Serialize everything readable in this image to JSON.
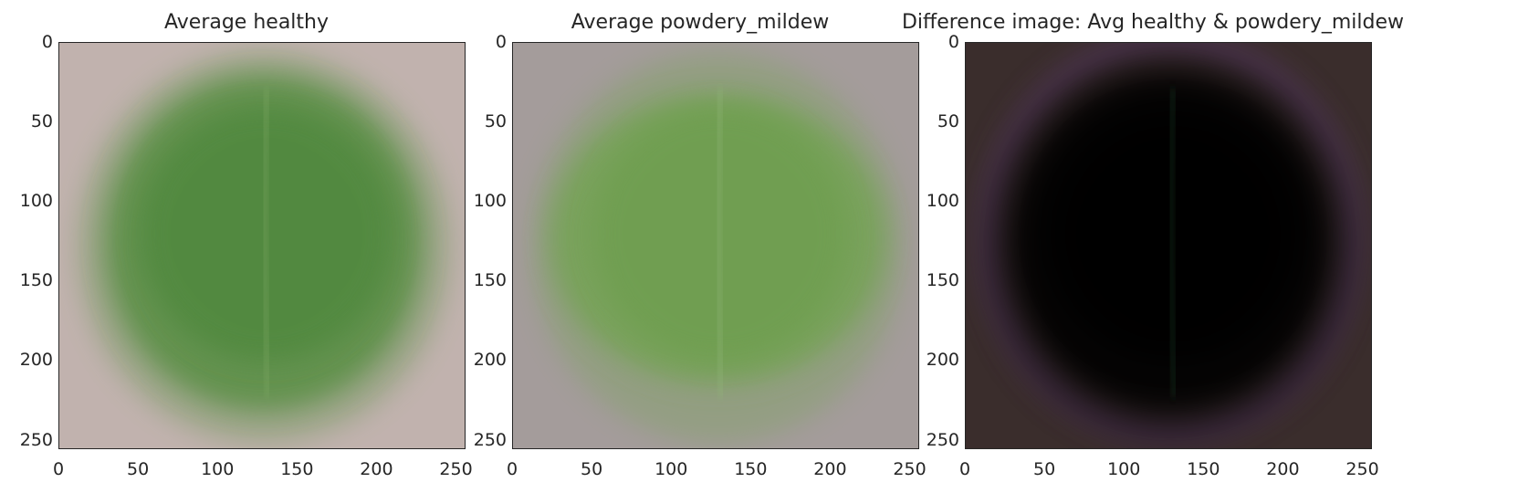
{
  "panels": [
    {
      "title": "Average healthy",
      "image_kind": "average-leaf",
      "colors": {
        "background": "#c1b2ae",
        "leaf": "#5a8f45",
        "leaf_core": "#4f883c",
        "vein": "#7fa864"
      }
    },
    {
      "title": "Average powdery_mildew",
      "image_kind": "average-leaf",
      "colors": {
        "background": "#a49c9b",
        "leaf": "#74a354",
        "leaf_core": "#6e9e4f",
        "vein": "#92b67a"
      }
    },
    {
      "title": "Difference image: Avg healthy & powdery_mildew",
      "image_kind": "difference",
      "colors": {
        "background": "#3a2d2c",
        "leaf": "#060506",
        "leaf_core": "#020202",
        "vein": "#1b3a24",
        "rim": "#5a3a6a"
      }
    }
  ],
  "axes": {
    "y_ticks": [
      "0",
      "50",
      "100",
      "150",
      "200",
      "250"
    ],
    "x_ticks": [
      "0",
      "50",
      "100",
      "150",
      "200",
      "250"
    ],
    "range": [
      0,
      256
    ]
  }
}
